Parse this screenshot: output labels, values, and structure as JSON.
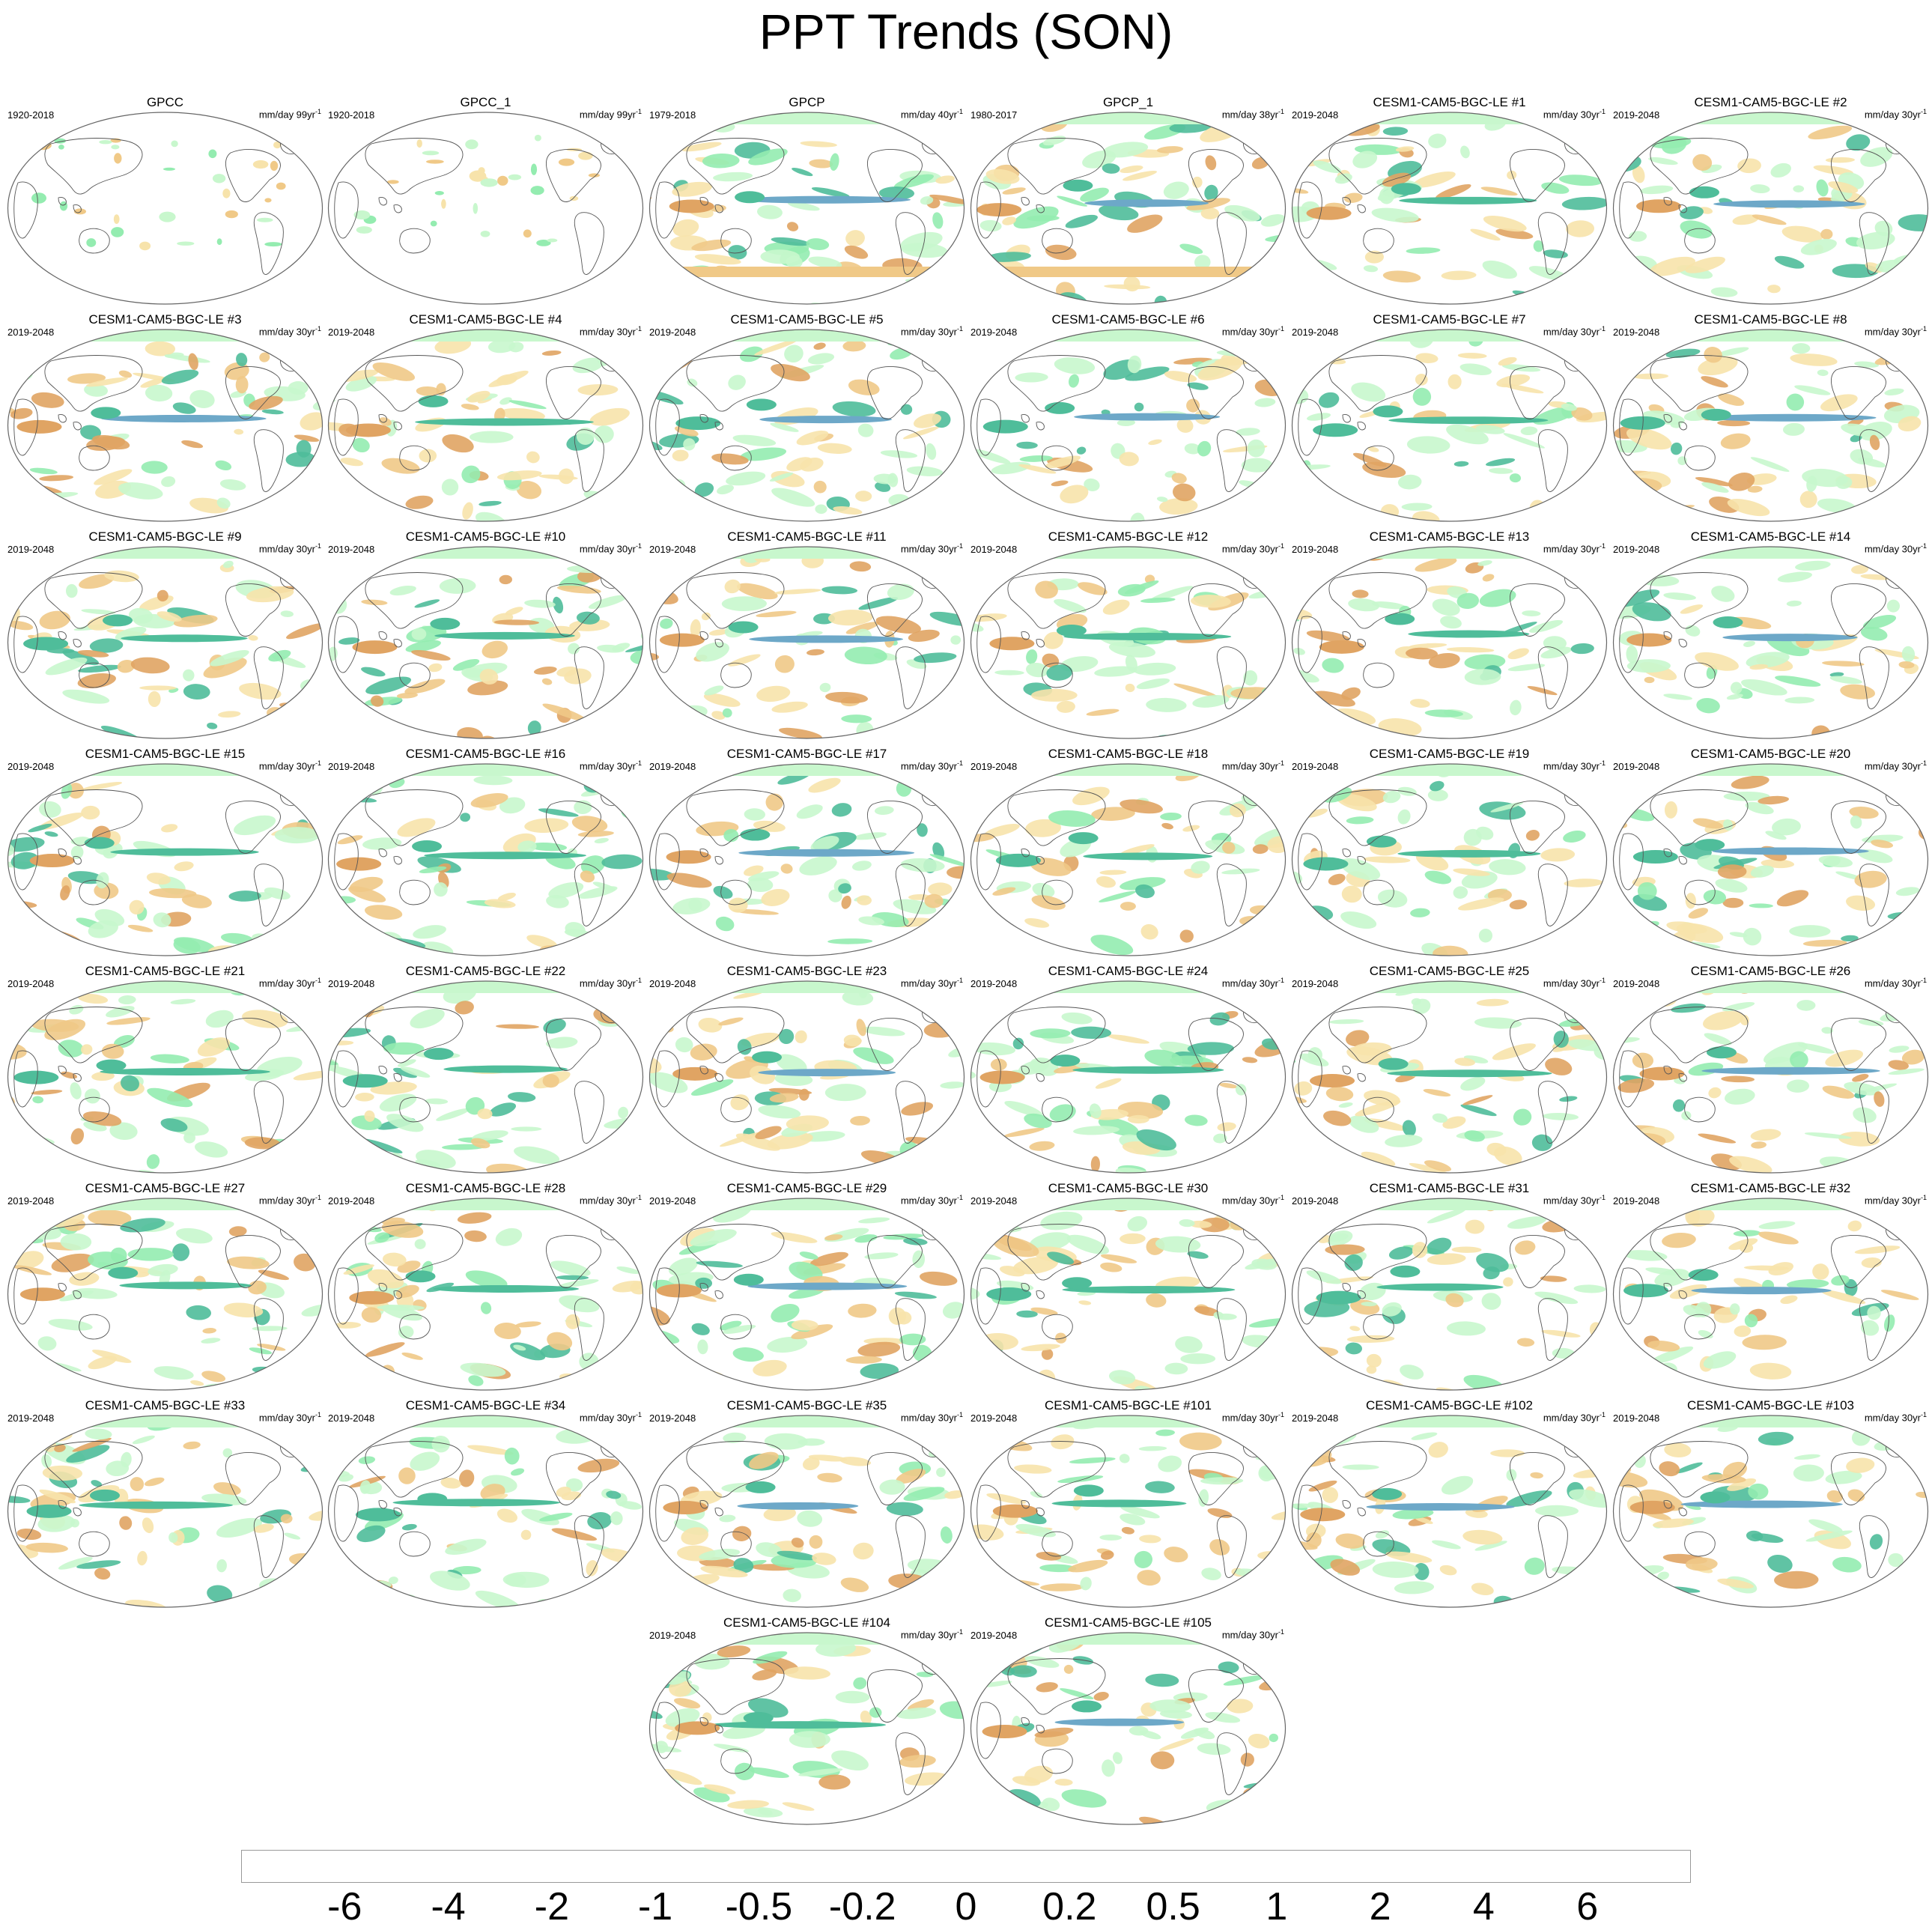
{
  "title": "PPT Trends (SON)",
  "panels": [
    {
      "name": "GPCC",
      "period": "1920-2018",
      "units": "mm/day 99yr",
      "units_exp": "-1"
    },
    {
      "name": "GPCC_1",
      "period": "1920-2018",
      "units": "mm/day 99yr",
      "units_exp": "-1"
    },
    {
      "name": "GPCP",
      "period": "1979-2018",
      "units": "mm/day 40yr",
      "units_exp": "-1"
    },
    {
      "name": "GPCP_1",
      "period": "1980-2017",
      "units": "mm/day 38yr",
      "units_exp": "-1"
    },
    {
      "name": "CESM1-CAM5-BGC-LE #1",
      "period": "2019-2048",
      "units": "mm/day 30yr",
      "units_exp": "-1"
    },
    {
      "name": "CESM1-CAM5-BGC-LE #2",
      "period": "2019-2048",
      "units": "mm/day 30yr",
      "units_exp": "-1"
    },
    {
      "name": "CESM1-CAM5-BGC-LE #3",
      "period": "2019-2048",
      "units": "mm/day 30yr",
      "units_exp": "-1"
    },
    {
      "name": "CESM1-CAM5-BGC-LE #4",
      "period": "2019-2048",
      "units": "mm/day 30yr",
      "units_exp": "-1"
    },
    {
      "name": "CESM1-CAM5-BGC-LE #5",
      "period": "2019-2048",
      "units": "mm/day 30yr",
      "units_exp": "-1"
    },
    {
      "name": "CESM1-CAM5-BGC-LE #6",
      "period": "2019-2048",
      "units": "mm/day 30yr",
      "units_exp": "-1"
    },
    {
      "name": "CESM1-CAM5-BGC-LE #7",
      "period": "2019-2048",
      "units": "mm/day 30yr",
      "units_exp": "-1"
    },
    {
      "name": "CESM1-CAM5-BGC-LE #8",
      "period": "2019-2048",
      "units": "mm/day 30yr",
      "units_exp": "-1"
    },
    {
      "name": "CESM1-CAM5-BGC-LE #9",
      "period": "2019-2048",
      "units": "mm/day 30yr",
      "units_exp": "-1"
    },
    {
      "name": "CESM1-CAM5-BGC-LE #10",
      "period": "2019-2048",
      "units": "mm/day 30yr",
      "units_exp": "-1"
    },
    {
      "name": "CESM1-CAM5-BGC-LE #11",
      "period": "2019-2048",
      "units": "mm/day 30yr",
      "units_exp": "-1"
    },
    {
      "name": "CESM1-CAM5-BGC-LE #12",
      "period": "2019-2048",
      "units": "mm/day 30yr",
      "units_exp": "-1"
    },
    {
      "name": "CESM1-CAM5-BGC-LE #13",
      "period": "2019-2048",
      "units": "mm/day 30yr",
      "units_exp": "-1"
    },
    {
      "name": "CESM1-CAM5-BGC-LE #14",
      "period": "2019-2048",
      "units": "mm/day 30yr",
      "units_exp": "-1"
    },
    {
      "name": "CESM1-CAM5-BGC-LE #15",
      "period": "2019-2048",
      "units": "mm/day 30yr",
      "units_exp": "-1"
    },
    {
      "name": "CESM1-CAM5-BGC-LE #16",
      "period": "2019-2048",
      "units": "mm/day 30yr",
      "units_exp": "-1"
    },
    {
      "name": "CESM1-CAM5-BGC-LE #17",
      "period": "2019-2048",
      "units": "mm/day 30yr",
      "units_exp": "-1"
    },
    {
      "name": "CESM1-CAM5-BGC-LE #18",
      "period": "2019-2048",
      "units": "mm/day 30yr",
      "units_exp": "-1"
    },
    {
      "name": "CESM1-CAM5-BGC-LE #19",
      "period": "2019-2048",
      "units": "mm/day 30yr",
      "units_exp": "-1"
    },
    {
      "name": "CESM1-CAM5-BGC-LE #20",
      "period": "2019-2048",
      "units": "mm/day 30yr",
      "units_exp": "-1"
    },
    {
      "name": "CESM1-CAM5-BGC-LE #21",
      "period": "2019-2048",
      "units": "mm/day 30yr",
      "units_exp": "-1"
    },
    {
      "name": "CESM1-CAM5-BGC-LE #22",
      "period": "2019-2048",
      "units": "mm/day 30yr",
      "units_exp": "-1"
    },
    {
      "name": "CESM1-CAM5-BGC-LE #23",
      "period": "2019-2048",
      "units": "mm/day 30yr",
      "units_exp": "-1"
    },
    {
      "name": "CESM1-CAM5-BGC-LE #24",
      "period": "2019-2048",
      "units": "mm/day 30yr",
      "units_exp": "-1"
    },
    {
      "name": "CESM1-CAM5-BGC-LE #25",
      "period": "2019-2048",
      "units": "mm/day 30yr",
      "units_exp": "-1"
    },
    {
      "name": "CESM1-CAM5-BGC-LE #26",
      "period": "2019-2048",
      "units": "mm/day 30yr",
      "units_exp": "-1"
    },
    {
      "name": "CESM1-CAM5-BGC-LE #27",
      "period": "2019-2048",
      "units": "mm/day 30yr",
      "units_exp": "-1"
    },
    {
      "name": "CESM1-CAM5-BGC-LE #28",
      "period": "2019-2048",
      "units": "mm/day 30yr",
      "units_exp": "-1"
    },
    {
      "name": "CESM1-CAM5-BGC-LE #29",
      "period": "2019-2048",
      "units": "mm/day 30yr",
      "units_exp": "-1"
    },
    {
      "name": "CESM1-CAM5-BGC-LE #30",
      "period": "2019-2048",
      "units": "mm/day 30yr",
      "units_exp": "-1"
    },
    {
      "name": "CESM1-CAM5-BGC-LE #31",
      "period": "2019-2048",
      "units": "mm/day 30yr",
      "units_exp": "-1"
    },
    {
      "name": "CESM1-CAM5-BGC-LE #32",
      "period": "2019-2048",
      "units": "mm/day 30yr",
      "units_exp": "-1"
    },
    {
      "name": "CESM1-CAM5-BGC-LE #33",
      "period": "2019-2048",
      "units": "mm/day 30yr",
      "units_exp": "-1"
    },
    {
      "name": "CESM1-CAM5-BGC-LE #34",
      "period": "2019-2048",
      "units": "mm/day 30yr",
      "units_exp": "-1"
    },
    {
      "name": "CESM1-CAM5-BGC-LE #35",
      "period": "2019-2048",
      "units": "mm/day 30yr",
      "units_exp": "-1"
    },
    {
      "name": "CESM1-CAM5-BGC-LE #101",
      "period": "2019-2048",
      "units": "mm/day 30yr",
      "units_exp": "-1"
    },
    {
      "name": "CESM1-CAM5-BGC-LE #102",
      "period": "2019-2048",
      "units": "mm/day 30yr",
      "units_exp": "-1"
    },
    {
      "name": "CESM1-CAM5-BGC-LE #103",
      "period": "2019-2048",
      "units": "mm/day 30yr",
      "units_exp": "-1"
    },
    {
      "name": "CESM1-CAM5-BGC-LE #104",
      "period": "2019-2048",
      "units": "mm/day 30yr",
      "units_exp": "-1"
    },
    {
      "name": "CESM1-CAM5-BGC-LE #105",
      "period": "2019-2048",
      "units": "mm/day 30yr",
      "units_exp": "-1"
    }
  ],
  "colorbar": {
    "colors": [
      "#b5651d",
      "#cd8540",
      "#e0a463",
      "#f0c987",
      "#f5e0a1",
      "#fdf2bf",
      "#ffffff",
      "#ffffff",
      "#c8f7cd",
      "#94ecb0",
      "#4fbd9a",
      "#6da8c8",
      "#1a6fa8",
      "#0b3a5c"
    ],
    "labels": [
      "-6",
      "-4",
      "-2",
      "-1",
      "-0.5",
      "-0.2",
      "0",
      "0.2",
      "0.5",
      "1",
      "2",
      "4",
      "6"
    ]
  }
}
